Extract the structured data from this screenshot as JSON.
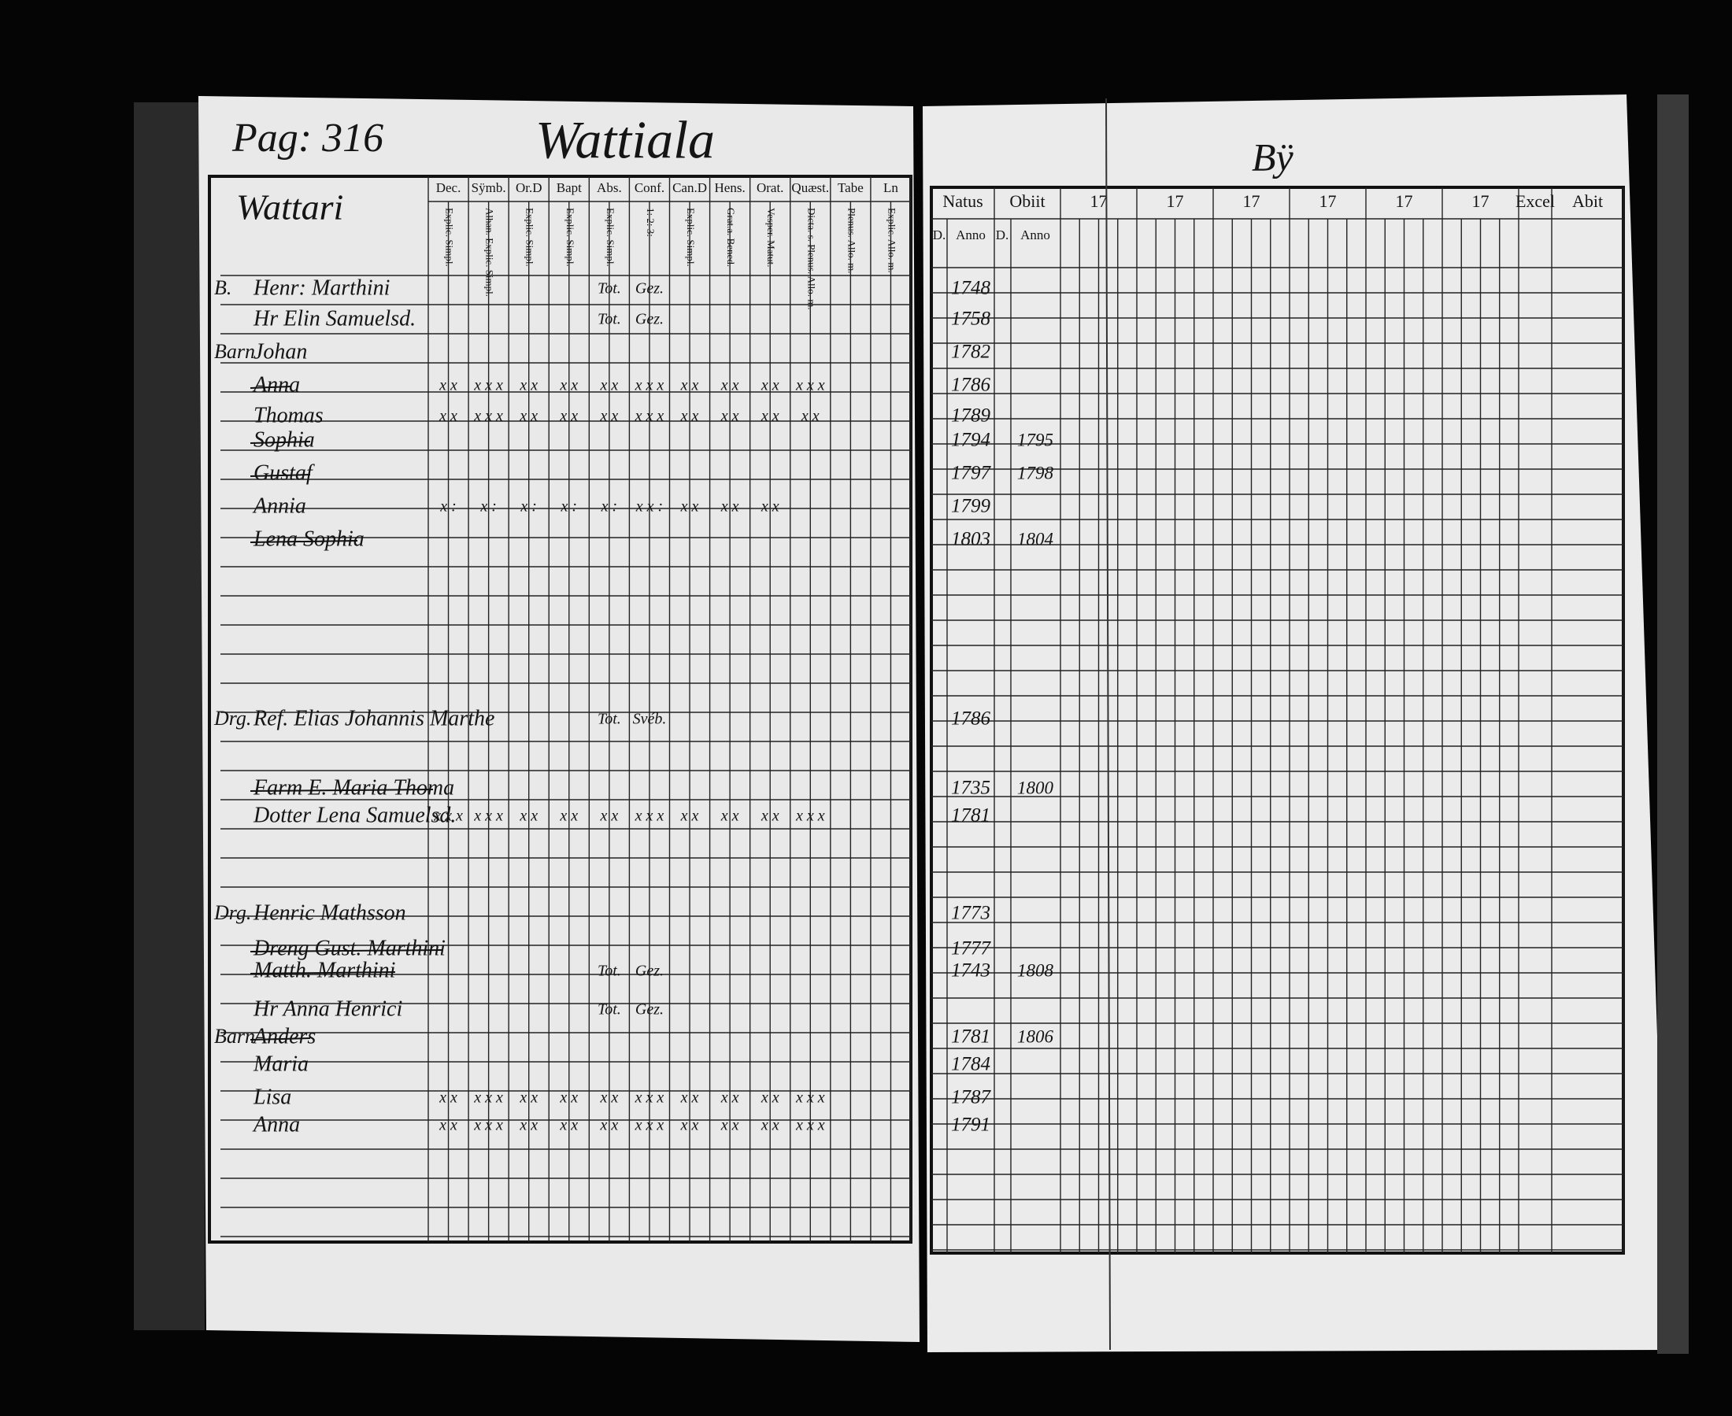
{
  "header": {
    "page": "Pag: 316",
    "parish": "Wattiala",
    "village": "Bÿ",
    "farm": "Wattari"
  },
  "left_columns": [
    {
      "title": "Dec.",
      "sub": "Explic. Simpl."
    },
    {
      "title": "Sÿmb.",
      "sub": "Alhan. Explic. Simpl."
    },
    {
      "title": "Or.D",
      "sub": "Explic. Simpl."
    },
    {
      "title": "Bapt",
      "sub": "Explic. Simpl."
    },
    {
      "title": "Abs.",
      "sub": "Explic. Simpl."
    },
    {
      "title": "Conf.",
      "sub": "1: 2: 3:"
    },
    {
      "title": "Can.D",
      "sub": "Explic. Simpl."
    },
    {
      "title": "Hens.",
      "sub": "Grat.a. Bened."
    },
    {
      "title": "Orat.",
      "sub": "Vesper. Matut."
    },
    {
      "title": "Quæst.",
      "sub": "Dicta. s. Plenus. Allo. m."
    },
    {
      "title": "Tabe",
      "sub": "Plenus. Allo. m."
    },
    {
      "title": "Ln",
      "sub": "Explic. Allo. m."
    }
  ],
  "right_columns": [
    "Natus",
    "Obiit",
    "17",
    "17",
    "17",
    "17",
    "17",
    "17",
    "Excel",
    "Abit"
  ],
  "right_sub": [
    "D.",
    "Anno",
    "D.",
    "Anno"
  ],
  "rows": [
    {
      "prefix": "B.",
      "name": "Henr: Marthini",
      "born": "1748",
      "notes": [
        "Tot.",
        "Gez."
      ]
    },
    {
      "name": "Hr Elin Samuelsd.",
      "born": "1758",
      "notes": [
        "Tot.",
        "Gez."
      ]
    },
    {
      "prefix": "Barn",
      "name": "Johan",
      "born": "1782"
    },
    {
      "name": "Anna",
      "born": "1786",
      "struck": true,
      "marks": [
        "x x",
        "x x x",
        "x x",
        "x x",
        "x x",
        "x x x",
        "x x",
        "x x",
        "x x",
        "x x x"
      ]
    },
    {
      "name": "Thomas",
      "born": "1789",
      "marks": [
        "x x",
        "x x x",
        "x x",
        "x x",
        "x x",
        "x x x",
        "x x",
        "x x",
        "x x",
        "x x"
      ]
    },
    {
      "name": "Sophia",
      "born": "1794",
      "died": "1795",
      "struck": true
    },
    {
      "name": "Gustaf",
      "born": "1797",
      "died": "1798",
      "struck": true
    },
    {
      "name": "Annia",
      "born": "1799",
      "marks": [
        "x :",
        "x :",
        "x :",
        "x :",
        "x :",
        "x x :",
        "x x",
        "x x",
        "x x"
      ]
    },
    {
      "name": "Lena Sophia",
      "born": "1803",
      "died": "1804",
      "struck": true
    },
    {
      "prefix": "Drg.",
      "name": "Ref. Elias Johannis Marthe",
      "born": "1786",
      "notes": [
        "Tot.",
        "Svéb."
      ]
    },
    {
      "name": "Farm E. Maria Thoma",
      "born": "1735",
      "died": "1800",
      "struck": true
    },
    {
      "name": "Dotter Lena Samuelsd.",
      "born": "1781",
      "marks": [
        "x x x",
        "x x x",
        "x x",
        "x x",
        "x x",
        "x x x",
        "x x",
        "x x",
        "x x",
        "x x x"
      ]
    },
    {
      "prefix": "Drg.",
      "name": "Henric Mathsson",
      "born": "1773"
    },
    {
      "name": "Dreng Gust. Marthini",
      "born": "1777",
      "struck": true
    },
    {
      "name": "Matth. Marthini",
      "born": "1743",
      "died": "1808",
      "struck": true,
      "notes": [
        "Tot.",
        "Gez."
      ]
    },
    {
      "name": "Hr Anna Henrici",
      "notes": [
        "Tot.",
        "Gez."
      ]
    },
    {
      "prefix": "Barn",
      "name": "Anders",
      "born": "1781",
      "died": "1806",
      "struck": true
    },
    {
      "name": "Maria",
      "born": "1784"
    },
    {
      "name": "Lisa",
      "born": "1787",
      "marks": [
        "x x",
        "x x x",
        "x x",
        "x x",
        "x x",
        "x x x",
        "x x",
        "x x",
        "x x",
        "x x x"
      ]
    },
    {
      "name": "Anna",
      "born": "1791",
      "marks": [
        "x x",
        "x x x",
        "x x",
        "x x",
        "x x",
        "x x x",
        "x x",
        "x x",
        "x x",
        "x x x"
      ]
    }
  ]
}
